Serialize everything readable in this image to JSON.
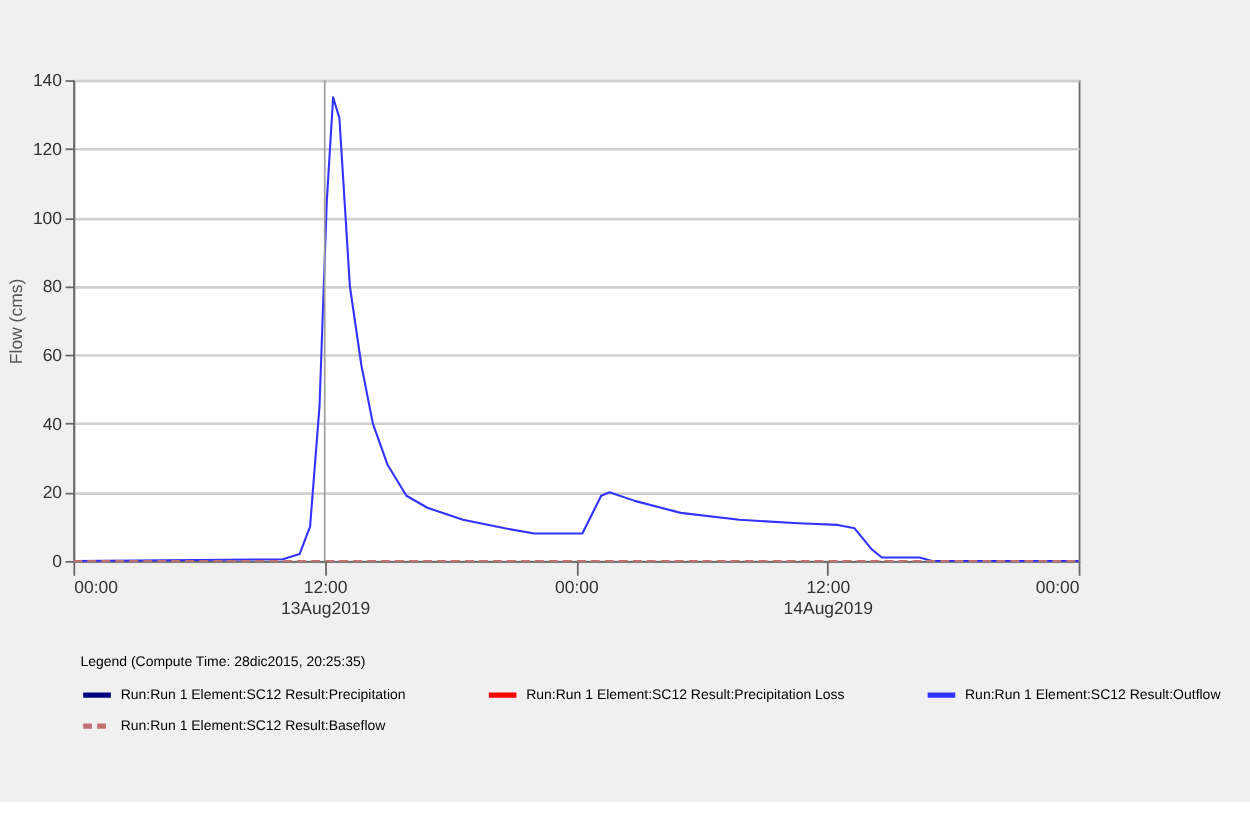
{
  "chart_data": {
    "type": "line",
    "ylabel": "Flow (cms)",
    "legend_title": "Legend (Compute Time: 28dic2015, 20:25:35)",
    "xlim": [
      "2019-08-13T00:00",
      "2019-08-15T00:00"
    ],
    "xticks": [
      {
        "value": "2019-08-13T00:00",
        "label": "00:00"
      },
      {
        "value": "2019-08-13T12:00",
        "label": "12:00\n13Aug2019"
      },
      {
        "value": "2019-08-14T00:00",
        "label": "00:00"
      },
      {
        "value": "2019-08-14T12:00",
        "label": "12:00\n14Aug2019"
      },
      {
        "value": "2019-08-15T00:00",
        "label": "00:00"
      }
    ],
    "ylim": [
      0,
      140
    ],
    "yticks": [
      0,
      20,
      40,
      60,
      80,
      100,
      120,
      140
    ],
    "grid": "y",
    "legend": "bottom",
    "ref_lines": [
      {
        "axis": "x",
        "value": "2019-08-13T12:00",
        "color": "#a0a0a0"
      }
    ],
    "series": [
      {
        "name": "Run:Run 1 Element:SC12 Result:Precipitation",
        "color": "#000080"
      },
      {
        "name": "Run:Run 1 Element:SC12 Result:Precipitation Loss",
        "color": "#ff0000"
      },
      {
        "name": "Run:Run 1 Element:SC12 Result:Outflow",
        "color": "#3333ff",
        "line_style": "solid",
        "x": [
          "2019-08-13T00:00",
          "2019-08-13T10:00",
          "2019-08-13T10:48",
          "2019-08-13T11:18",
          "2019-08-13T11:45",
          "2019-08-13T12:06",
          "2019-08-13T12:24",
          "2019-08-13T12:42",
          "2019-08-13T13:12",
          "2019-08-13T13:45",
          "2019-08-13T14:18",
          "2019-08-13T15:00",
          "2019-08-13T15:54",
          "2019-08-13T16:54",
          "2019-08-13T18:36",
          "2019-08-13T20:36",
          "2019-08-13T22:00",
          "2019-08-14T00:18",
          "2019-08-14T01:12",
          "2019-08-14T01:36",
          "2019-08-14T02:48",
          "2019-08-14T05:00",
          "2019-08-14T07:48",
          "2019-08-14T10:36",
          "2019-08-14T12:30",
          "2019-08-14T13:18",
          "2019-08-14T14:06",
          "2019-08-14T14:36",
          "2019-08-14T16:24",
          "2019-08-14T17:00",
          "2019-08-15T00:00"
        ],
        "values": [
          0,
          0.5,
          2,
          10,
          45,
          105,
          135,
          129,
          80,
          57,
          40,
          28,
          19,
          15.5,
          12,
          9.5,
          8,
          8,
          19,
          20,
          17.5,
          14,
          12,
          11,
          10.5,
          9.5,
          3.5,
          1,
          1,
          0,
          0
        ]
      },
      {
        "name": "Run:Run 1 Element:SC12 Result:Baseflow",
        "color": "#c07070",
        "line_style": "dashed",
        "x": [
          "2019-08-13T00:00",
          "2019-08-15T00:00"
        ],
        "values": [
          0,
          0
        ]
      }
    ]
  }
}
